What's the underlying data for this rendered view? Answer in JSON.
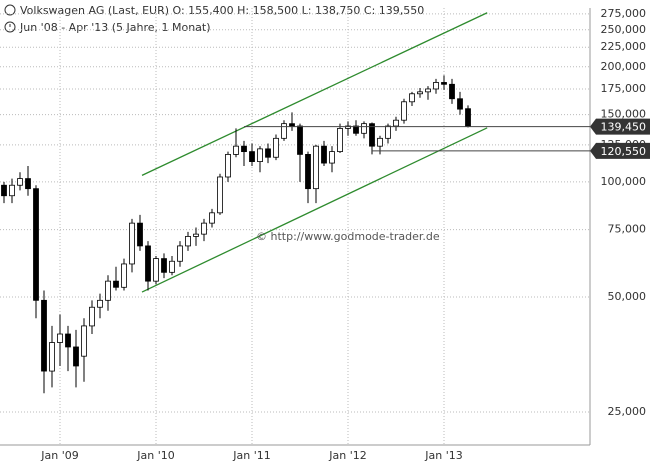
{
  "chart_data": {
    "type": "candlestick",
    "title": "Volkswagen AG (Last, EUR)  O: 155,400  H: 158,500  L: 138,750  C: 139,550",
    "subtitle": "Jun '08 - Apr '13 (5 Jahre, 1 Monat)",
    "watermark": "© http://www.godmode-trader.de",
    "categories": [
      null,
      null,
      null,
      null,
      null,
      null,
      null,
      "Jan '09",
      null,
      null,
      null,
      null,
      null,
      null,
      null,
      null,
      null,
      null,
      null,
      "Jan '10",
      null,
      null,
      null,
      null,
      null,
      null,
      null,
      null,
      null,
      null,
      null,
      "Jan '11",
      null,
      null,
      null,
      null,
      null,
      null,
      null,
      null,
      null,
      null,
      null,
      "Jan '12",
      null,
      null,
      null,
      null,
      null,
      null,
      null,
      null,
      null,
      null,
      null,
      "Jan '13",
      null,
      null,
      null
    ],
    "open": [
      98000,
      92000,
      98000,
      102000,
      96000,
      49000,
      32000,
      38000,
      40000,
      37000,
      35000,
      42000,
      47000,
      49000,
      55000,
      53000,
      61000,
      78000,
      68000,
      55000,
      63000,
      58000,
      62000,
      68000,
      72000,
      73000,
      78000,
      83000,
      103000,
      118000,
      124000,
      120000,
      113000,
      122000,
      116000,
      130000,
      142000,
      140000,
      118000,
      96000,
      124000,
      112000,
      120000,
      138000,
      140000,
      134000,
      142000,
      124000,
      130000,
      140000,
      145000,
      162000,
      170000,
      172000,
      175000,
      182000,
      180000,
      165000,
      155400
    ],
    "high": [
      100000,
      102000,
      106000,
      110000,
      98000,
      52000,
      42000,
      45000,
      42000,
      41000,
      44000,
      49000,
      51000,
      57000,
      60000,
      63000,
      80000,
      82000,
      70000,
      64000,
      65000,
      64000,
      70000,
      74000,
      76000,
      80000,
      85000,
      105000,
      120000,
      138000,
      128000,
      126000,
      124000,
      126000,
      133000,
      145000,
      152000,
      142000,
      120000,
      125000,
      128000,
      124000,
      142000,
      144000,
      145000,
      144000,
      143000,
      132000,
      142000,
      148000,
      165000,
      172000,
      176000,
      178000,
      186000,
      190000,
      186000,
      172000,
      158500
    ],
    "low": [
      88000,
      88000,
      95000,
      92000,
      44000,
      28000,
      29000,
      33000,
      32000,
      29000,
      30000,
      40000,
      44000,
      46000,
      52000,
      52000,
      58000,
      66000,
      52000,
      54000,
      56000,
      57000,
      60000,
      66000,
      68000,
      70000,
      76000,
      82000,
      100000,
      116000,
      110000,
      110000,
      106000,
      112000,
      114000,
      128000,
      136000,
      100000,
      88000,
      88000,
      110000,
      106000,
      119000,
      132000,
      132000,
      130000,
      118000,
      118000,
      126000,
      136000,
      142000,
      158000,
      166000,
      164000,
      170000,
      174000,
      160000,
      150000,
      138750
    ],
    "close": [
      92000,
      98000,
      102000,
      96000,
      49000,
      32000,
      38000,
      40000,
      37000,
      33000,
      42000,
      47000,
      49000,
      55000,
      53000,
      61000,
      78000,
      68000,
      55000,
      63000,
      58000,
      62000,
      68000,
      72000,
      73000,
      78000,
      83000,
      103000,
      118000,
      124000,
      120000,
      113000,
      122000,
      116000,
      130000,
      142000,
      140000,
      118000,
      96000,
      124000,
      112000,
      120000,
      138000,
      140000,
      134000,
      142000,
      124000,
      130000,
      140000,
      145000,
      162000,
      170000,
      172000,
      175000,
      182000,
      180000,
      165000,
      155000,
      139550
    ],
    "ylim": [
      20500,
      285000
    ],
    "log_scale": true,
    "grid": true,
    "yticks": [
      {
        "value": 25000,
        "label": "25,000"
      },
      {
        "value": 50000,
        "label": "50,000"
      },
      {
        "value": 75000,
        "label": "75,000"
      },
      {
        "value": 100000,
        "label": "100,000"
      },
      {
        "value": 125000,
        "label": "125,000"
      },
      {
        "value": 150000,
        "label": "150,000"
      },
      {
        "value": 175000,
        "label": "175,000"
      },
      {
        "value": 200000,
        "label": "200,000"
      },
      {
        "value": 225000,
        "label": "225,000"
      },
      {
        "value": 250000,
        "label": "250,000"
      },
      {
        "value": 275000,
        "label": "275,000"
      }
    ],
    "levels": [
      {
        "value": 139450,
        "label": "139,450",
        "from": 30
      },
      {
        "value": 120550,
        "label": "120,550",
        "from": 46
      }
    ],
    "trendlines": [
      {
        "color": "#2e8b2e",
        "x": [
          17.25,
          60.4
        ],
        "y": [
          104000,
          277000
        ]
      },
      {
        "color": "#2e8b2e",
        "x": [
          17.25,
          60.4
        ],
        "y": [
          51500,
          138500
        ]
      }
    ]
  }
}
